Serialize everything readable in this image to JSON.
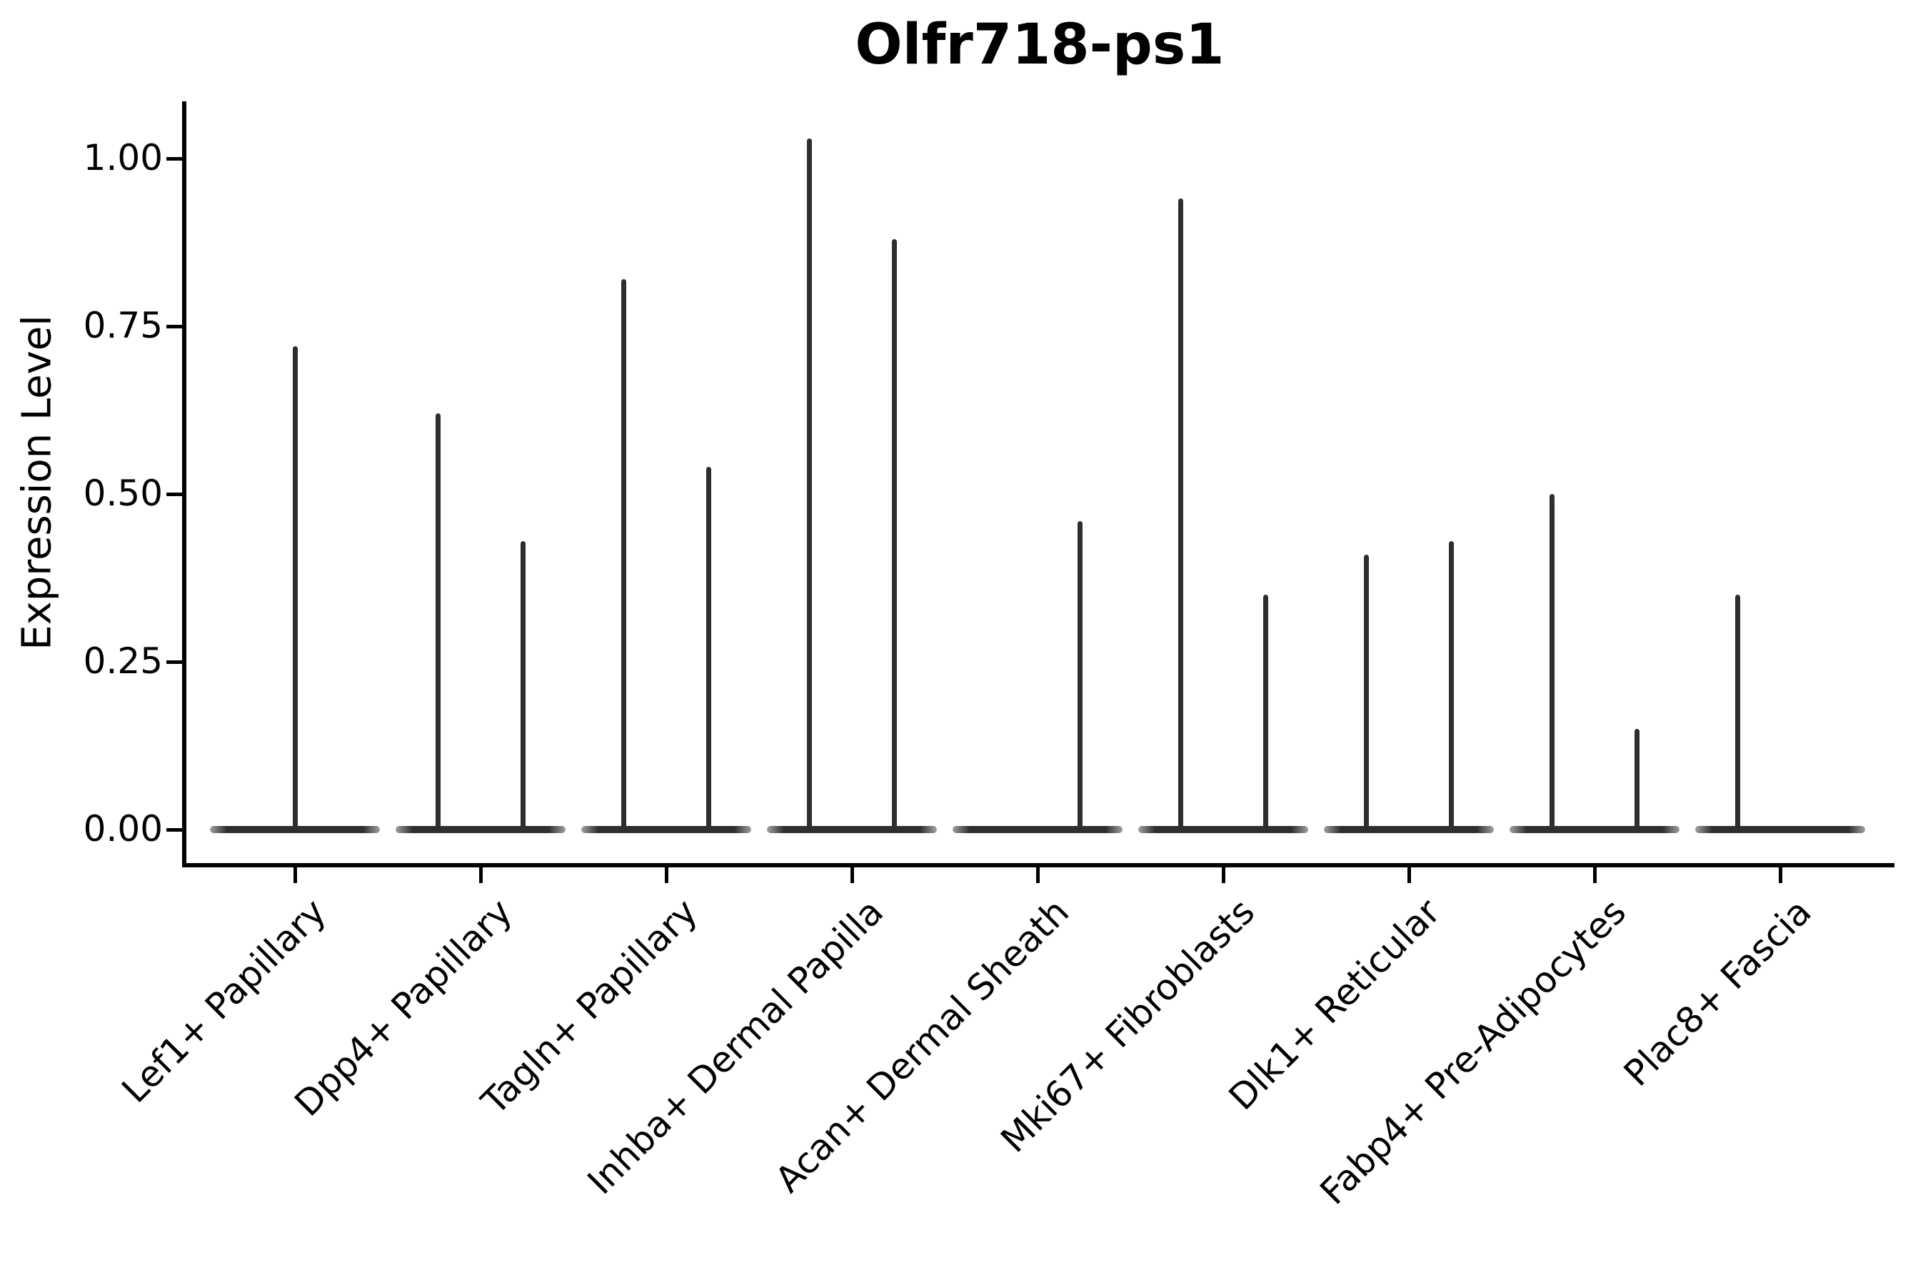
{
  "figure": {
    "title": "Olfr718-ps1",
    "ylabel": "Expression Level",
    "background_color": "#ffffff",
    "violin_color": "#2e2e2e",
    "axis_color": "#000000"
  },
  "chart_data": {
    "type": "violin",
    "title": "Olfr718-ps1",
    "xlabel": "",
    "ylabel": "Expression Level",
    "grid": false,
    "legend_position": "none",
    "ylim": [
      0,
      1.08
    ],
    "yticks": [
      0.0,
      0.25,
      0.5,
      0.75,
      1.0
    ],
    "ytick_labels": [
      "0.00",
      "0.25",
      "0.50",
      "0.75",
      "1.00"
    ],
    "categories": [
      "Lef1+ Papillary",
      "Dpp4+ Papillary",
      "Tagln+ Papillary",
      "Inhba+ Dermal Papilla",
      "Acan+ Dermal Sheath",
      "Mki67+ Fibroblasts",
      "Dlk1+ Reticular",
      "Fabp4+ Pre-Adipocytes",
      "Plac8+ Fascia"
    ],
    "description": "Collapsed violins: flat density pancake at expression 0 across each category, with thin vertical spikes reaching the maximum expression value of each (sub)violin. 'left'/'right' are dodged sub-violins within a category; 'center' is a single full-width violin.",
    "violins": [
      {
        "category": "Lef1+ Papillary",
        "spikes": [
          {
            "position": "center",
            "max": 0.72
          }
        ]
      },
      {
        "category": "Dpp4+ Papillary",
        "spikes": [
          {
            "position": "left",
            "max": 0.62
          },
          {
            "position": "right",
            "max": 0.43
          }
        ]
      },
      {
        "category": "Tagln+ Papillary",
        "spikes": [
          {
            "position": "left",
            "max": 0.82
          },
          {
            "position": "right",
            "max": 0.54
          }
        ]
      },
      {
        "category": "Inhba+ Dermal Papilla",
        "spikes": [
          {
            "position": "left",
            "max": 1.03
          },
          {
            "position": "right",
            "max": 0.88
          }
        ]
      },
      {
        "category": "Acan+ Dermal Sheath",
        "spikes": [
          {
            "position": "left",
            "max": 0.0
          },
          {
            "position": "right",
            "max": 0.46
          }
        ]
      },
      {
        "category": "Mki67+ Fibroblasts",
        "spikes": [
          {
            "position": "left",
            "max": 0.94
          },
          {
            "position": "right",
            "max": 0.35
          }
        ]
      },
      {
        "category": "Dlk1+ Reticular",
        "spikes": [
          {
            "position": "left",
            "max": 0.41
          },
          {
            "position": "right",
            "max": 0.43
          }
        ]
      },
      {
        "category": "Fabp4+ Pre-Adipocytes",
        "spikes": [
          {
            "position": "left",
            "max": 0.5
          },
          {
            "position": "right",
            "max": 0.15
          }
        ]
      },
      {
        "category": "Plac8+ Fascia",
        "spikes": [
          {
            "position": "left",
            "max": 0.35
          },
          {
            "position": "right",
            "max": 0.0
          }
        ]
      }
    ]
  }
}
